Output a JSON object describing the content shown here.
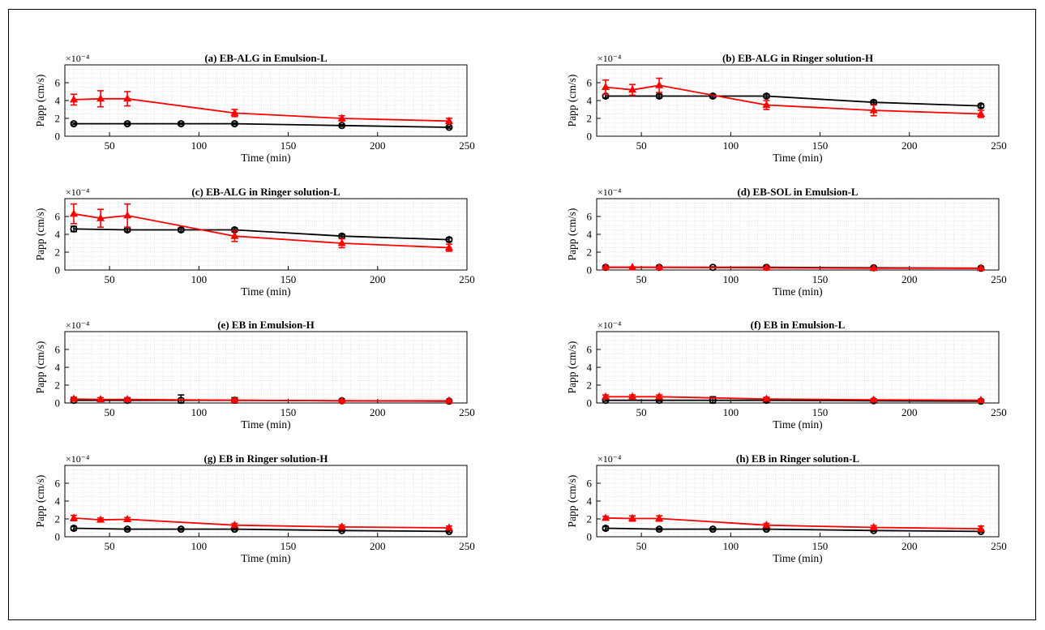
{
  "colors": {
    "series_black": "#000000",
    "series_red": "#ff0000",
    "grid": "#c8c8c8",
    "axis": "#000000"
  },
  "chart_data": [
    {
      "type": "line",
      "title": "(a) EB-ALG in Emulsion-L",
      "xlabel": "Time (min)",
      "ylabel": "Papp (cm/s)",
      "y_exponent": "×10⁻⁴",
      "xlim": [
        25,
        250
      ],
      "ylim": [
        0,
        8
      ],
      "xticks": [
        50,
        100,
        150,
        200,
        250
      ],
      "yticks": [
        0,
        2,
        4,
        6
      ],
      "series": [
        {
          "name": "black",
          "marker": "circle",
          "x": [
            30,
            60,
            90,
            120,
            180,
            240
          ],
          "y": [
            1.4,
            1.4,
            1.4,
            1.4,
            1.2,
            1.0
          ],
          "err": [
            0.1,
            0.1,
            0.1,
            0.1,
            0.1,
            0.1
          ]
        },
        {
          "name": "red",
          "marker": "triangle",
          "x": [
            30,
            45,
            60,
            120,
            180,
            240
          ],
          "y": [
            4.1,
            4.2,
            4.2,
            2.6,
            2.0,
            1.7
          ],
          "err": [
            0.6,
            0.9,
            0.8,
            0.4,
            0.3,
            0.3
          ]
        }
      ]
    },
    {
      "type": "line",
      "title": "(b) EB-ALG in Ringer solution-H",
      "xlabel": "Time (min)",
      "ylabel": "Papp (cm/s)",
      "y_exponent": "×10⁻⁴",
      "xlim": [
        25,
        250
      ],
      "ylim": [
        0,
        8
      ],
      "xticks": [
        50,
        100,
        150,
        200,
        250
      ],
      "yticks": [
        0,
        2,
        4,
        6
      ],
      "series": [
        {
          "name": "black",
          "marker": "circle",
          "x": [
            30,
            60,
            90,
            120,
            180,
            240
          ],
          "y": [
            4.5,
            4.5,
            4.5,
            4.5,
            3.8,
            3.4
          ],
          "err": [
            0.2,
            0.2,
            0.2,
            0.2,
            0.2,
            0.2
          ]
        },
        {
          "name": "red",
          "marker": "triangle",
          "x": [
            30,
            45,
            60,
            120,
            180,
            240
          ],
          "y": [
            5.5,
            5.2,
            5.7,
            3.5,
            2.9,
            2.5
          ],
          "err": [
            0.8,
            0.6,
            0.8,
            0.5,
            0.6,
            0.4
          ]
        }
      ]
    },
    {
      "type": "line",
      "title": "(c) EB-ALG in Ringer solution-L",
      "xlabel": "Time (min)",
      "ylabel": "Papp (cm/s)",
      "y_exponent": "×10⁻⁴",
      "xlim": [
        25,
        250
      ],
      "ylim": [
        0,
        8
      ],
      "xticks": [
        50,
        100,
        150,
        200,
        250
      ],
      "yticks": [
        0,
        2,
        4,
        6
      ],
      "series": [
        {
          "name": "black",
          "marker": "circle",
          "x": [
            30,
            60,
            90,
            120,
            180,
            240
          ],
          "y": [
            4.6,
            4.5,
            4.5,
            4.5,
            3.8,
            3.4
          ],
          "err": [
            0.3,
            0.2,
            0.2,
            0.2,
            0.2,
            0.2
          ]
        },
        {
          "name": "red",
          "marker": "triangle",
          "x": [
            30,
            45,
            60,
            120,
            180,
            240
          ],
          "y": [
            6.3,
            5.8,
            6.1,
            3.8,
            3.0,
            2.5
          ],
          "err": [
            1.1,
            1.0,
            1.3,
            0.6,
            0.5,
            0.4
          ]
        }
      ]
    },
    {
      "type": "line",
      "title": "(d) EB-SOL in Emulsion-L",
      "xlabel": "Time (min)",
      "ylabel": "Papp (cm/s)",
      "y_exponent": "×10⁻⁴",
      "xlim": [
        25,
        250
      ],
      "ylim": [
        0,
        8
      ],
      "xticks": [
        50,
        100,
        150,
        200,
        250
      ],
      "yticks": [
        0,
        2,
        4,
        6
      ],
      "series": [
        {
          "name": "black",
          "marker": "circle",
          "x": [
            30,
            60,
            90,
            120,
            180,
            240
          ],
          "y": [
            0.3,
            0.3,
            0.3,
            0.3,
            0.25,
            0.2
          ],
          "err": [
            0.05,
            0.05,
            0.05,
            0.05,
            0.05,
            0.05
          ]
        },
        {
          "name": "red",
          "marker": "triangle",
          "x": [
            30,
            45,
            60,
            120,
            180,
            240
          ],
          "y": [
            0.3,
            0.3,
            0.3,
            0.25,
            0.2,
            0.2
          ],
          "err": [
            0.05,
            0.05,
            0.05,
            0.05,
            0.05,
            0.05
          ]
        }
      ]
    },
    {
      "type": "line",
      "title": "(e) EB in Emulsion-H",
      "xlabel": "Time (min)",
      "ylabel": "Papp (cm/s)",
      "y_exponent": "×10⁻⁴",
      "xlim": [
        25,
        250
      ],
      "ylim": [
        0,
        8
      ],
      "xticks": [
        50,
        100,
        150,
        200,
        250
      ],
      "yticks": [
        0,
        2,
        4,
        6
      ],
      "series": [
        {
          "name": "black",
          "marker": "circle",
          "x": [
            30,
            60,
            90,
            120,
            180,
            240
          ],
          "y": [
            0.3,
            0.3,
            0.3,
            0.3,
            0.25,
            0.2
          ],
          "err": [
            0.1,
            0.1,
            0.6,
            0.3,
            0.1,
            0.1
          ]
        },
        {
          "name": "red",
          "marker": "triangle",
          "x": [
            30,
            45,
            60,
            120,
            180,
            240
          ],
          "y": [
            0.45,
            0.4,
            0.4,
            0.3,
            0.25,
            0.25
          ],
          "err": [
            0.2,
            0.2,
            0.2,
            0.2,
            0.1,
            0.1
          ]
        }
      ]
    },
    {
      "type": "line",
      "title": "(f) EB in Emulsion-L",
      "xlabel": "Time (min)",
      "ylabel": "Papp (cm/s)",
      "y_exponent": "×10⁻⁴",
      "xlim": [
        25,
        250
      ],
      "ylim": [
        0,
        8
      ],
      "xticks": [
        50,
        100,
        150,
        200,
        250
      ],
      "yticks": [
        0,
        2,
        4,
        6
      ],
      "series": [
        {
          "name": "black",
          "marker": "circle",
          "x": [
            30,
            60,
            90,
            120,
            180,
            240
          ],
          "y": [
            0.3,
            0.3,
            0.3,
            0.3,
            0.25,
            0.2
          ],
          "err": [
            0.1,
            0.1,
            0.4,
            0.2,
            0.1,
            0.1
          ]
        },
        {
          "name": "red",
          "marker": "triangle",
          "x": [
            30,
            45,
            60,
            120,
            180,
            240
          ],
          "y": [
            0.7,
            0.7,
            0.7,
            0.45,
            0.35,
            0.3
          ],
          "err": [
            0.2,
            0.2,
            0.2,
            0.2,
            0.1,
            0.1
          ]
        }
      ]
    },
    {
      "type": "line",
      "title": "(g) EB in Ringer solution-H",
      "xlabel": "Time (min)",
      "ylabel": "Papp (cm/s)",
      "y_exponent": "×10⁻⁴",
      "xlim": [
        25,
        250
      ],
      "ylim": [
        0,
        8
      ],
      "xticks": [
        50,
        100,
        150,
        200,
        250
      ],
      "yticks": [
        0,
        2,
        4,
        6
      ],
      "series": [
        {
          "name": "black",
          "marker": "circle",
          "x": [
            30,
            60,
            90,
            120,
            180,
            240
          ],
          "y": [
            0.95,
            0.85,
            0.85,
            0.85,
            0.7,
            0.6
          ],
          "err": [
            0.2,
            0.1,
            0.1,
            0.1,
            0.1,
            0.1
          ]
        },
        {
          "name": "red",
          "marker": "triangle",
          "x": [
            30,
            45,
            60,
            120,
            180,
            240
          ],
          "y": [
            2.1,
            1.9,
            1.95,
            1.3,
            1.1,
            1.0
          ],
          "err": [
            0.3,
            0.2,
            0.2,
            0.2,
            0.2,
            0.2
          ]
        }
      ]
    },
    {
      "type": "line",
      "title": "(h) EB in Ringer solution-L",
      "xlabel": "Time (min)",
      "ylabel": "Papp (cm/s)",
      "y_exponent": "×10⁻⁴",
      "xlim": [
        25,
        250
      ],
      "ylim": [
        0,
        8
      ],
      "xticks": [
        50,
        100,
        150,
        200,
        250
      ],
      "yticks": [
        0,
        2,
        4,
        6
      ],
      "series": [
        {
          "name": "black",
          "marker": "circle",
          "x": [
            30,
            60,
            90,
            120,
            180,
            240
          ],
          "y": [
            0.95,
            0.85,
            0.85,
            0.85,
            0.7,
            0.6
          ],
          "err": [
            0.2,
            0.1,
            0.1,
            0.1,
            0.1,
            0.1
          ]
        },
        {
          "name": "red",
          "marker": "triangle",
          "x": [
            30,
            45,
            60,
            120,
            180,
            240
          ],
          "y": [
            2.1,
            2.05,
            2.05,
            1.3,
            1.05,
            0.9
          ],
          "err": [
            0.2,
            0.3,
            0.3,
            0.2,
            0.2,
            0.3
          ]
        }
      ]
    }
  ]
}
